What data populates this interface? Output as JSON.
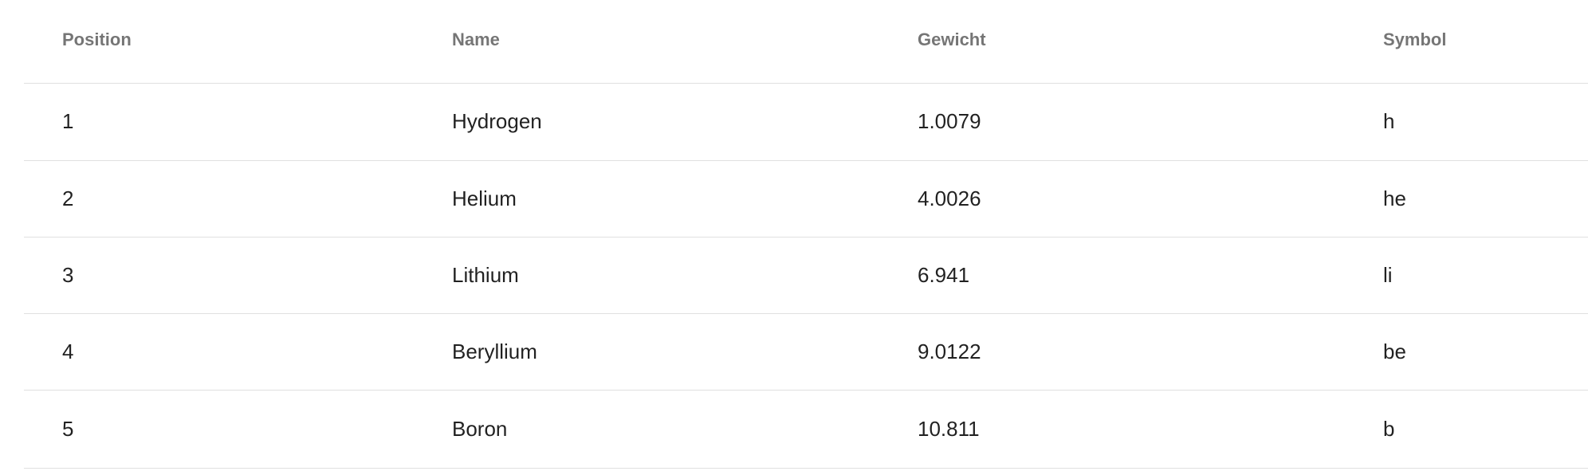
{
  "table": {
    "columns": [
      "Position",
      "Name",
      "Gewicht",
      "Symbol"
    ],
    "rows": [
      {
        "position": "1",
        "name": "Hydrogen",
        "weight": "1.0079",
        "symbol": "h"
      },
      {
        "position": "2",
        "name": "Helium",
        "weight": "4.0026",
        "symbol": "he"
      },
      {
        "position": "3",
        "name": "Lithium",
        "weight": "6.941",
        "symbol": "li"
      },
      {
        "position": "4",
        "name": "Beryllium",
        "weight": "9.0122",
        "symbol": "be"
      },
      {
        "position": "5",
        "name": "Boron",
        "weight": "10.811",
        "symbol": "b"
      }
    ]
  }
}
